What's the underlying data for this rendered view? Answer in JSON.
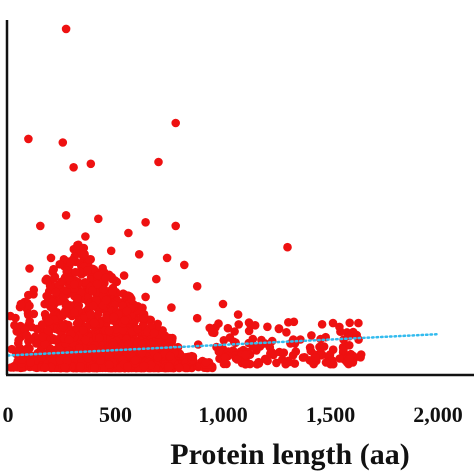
{
  "chart_data": {
    "type": "scatter",
    "title": "",
    "xlabel": "Protein length (aa)",
    "ylabel": "",
    "xlim": [
      0,
      2000
    ],
    "ylim": [
      0,
      1
    ],
    "x_ticks": [
      "0",
      "500",
      "1,000",
      "1,500",
      "2,000"
    ],
    "x_tick_values": [
      0,
      500,
      1000,
      1500,
      2000
    ],
    "grid": false,
    "legend": "none",
    "series": [
      {
        "marker_color": "#ee1111",
        "points": [
          [
            270,
            0.975
          ],
          [
            780,
            0.71
          ],
          [
            95,
            0.665
          ],
          [
            255,
            0.655
          ],
          [
            700,
            0.6
          ],
          [
            385,
            0.595
          ],
          [
            305,
            0.585
          ],
          [
            1300,
            0.36
          ],
          [
            560,
            0.4
          ],
          [
            420,
            0.44
          ],
          [
            640,
            0.43
          ],
          [
            780,
            0.42
          ],
          [
            150,
            0.42
          ],
          [
            270,
            0.45
          ],
          [
            360,
            0.39
          ],
          [
            480,
            0.35
          ],
          [
            610,
            0.34
          ],
          [
            740,
            0.33
          ],
          [
            820,
            0.31
          ],
          [
            200,
            0.33
          ],
          [
            100,
            0.3
          ],
          [
            540,
            0.28
          ],
          [
            690,
            0.27
          ],
          [
            880,
            0.25
          ],
          [
            1000,
            0.2
          ],
          [
            1070,
            0.17
          ],
          [
            1150,
            0.14
          ],
          [
            1260,
            0.13
          ],
          [
            1330,
            0.15
          ],
          [
            1360,
            0.1
          ],
          [
            1470,
            0.08
          ],
          [
            1560,
            0.07
          ],
          [
            1640,
            0.05
          ],
          [
            1430,
            0.05
          ],
          [
            1220,
            0.06
          ],
          [
            1120,
            0.09
          ],
          [
            950,
            0.12
          ],
          [
            880,
            0.16
          ],
          [
            760,
            0.19
          ],
          [
            640,
            0.22
          ],
          [
            120,
            0.24
          ],
          [
            60,
            0.2
          ],
          [
            30,
            0.14
          ]
        ]
      }
    ],
    "trendline": {
      "style": "dotted",
      "color": "#33bbee",
      "x": [
        0,
        2000
      ],
      "y": [
        0.055,
        0.115
      ]
    }
  }
}
